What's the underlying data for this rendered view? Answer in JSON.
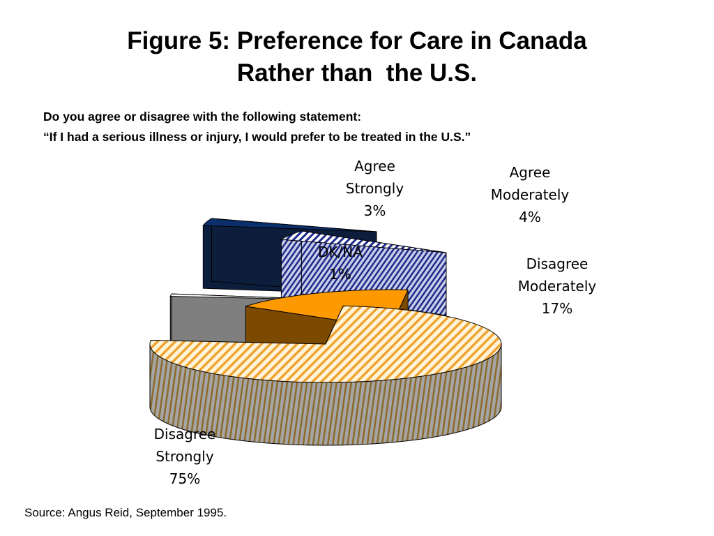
{
  "title": {
    "line1": "Figure 5: Preference for Care in Canada",
    "line2": "Rather than  the U.S."
  },
  "question": {
    "line1": "Do you agree or disagree with the following statement:",
    "line2": "“If I had a serious illness or injury, I would prefer to be treated in the U.S.”"
  },
  "source": "Source: Angus Reid, September 1995.",
  "chart_data": {
    "type": "pie",
    "style": "3d-exploded",
    "title": "Figure 5: Preference for Care in Canada Rather than  the U.S.",
    "slices": [
      {
        "label": "Disagree Strongly",
        "value": 75,
        "display": "75%",
        "color": "#F5A623",
        "pattern": "hatched"
      },
      {
        "label": "DK/NA",
        "value": 1,
        "display": "1%",
        "color": "#FFFFFF",
        "pattern": "solid"
      },
      {
        "label": "Agree Strongly",
        "value": 3,
        "display": "3%",
        "color": "#0A2F6A",
        "pattern": "solid"
      },
      {
        "label": "Agree Moderately",
        "value": 4,
        "display": "4%",
        "color": "#1F2F8F",
        "pattern": "hatched"
      },
      {
        "label": "Disagree Moderately",
        "value": 17,
        "display": "17%",
        "color": "#FF9900",
        "pattern": "solid"
      }
    ],
    "legend": "none"
  },
  "labels": {
    "agree_strongly": {
      "l1": "Agree",
      "l2": "Strongly",
      "l3": "3%"
    },
    "agree_moderately": {
      "l1": "Agree",
      "l2": "Moderately",
      "l3": "4%"
    },
    "dkna": {
      "l1": "DK/NA",
      "l2": "1%"
    },
    "disagree_moderately": {
      "l1": "Disagree",
      "l2": "Moderately",
      "l3": "17%"
    },
    "disagree_strongly": {
      "l1": "Disagree",
      "l2": "Strongly",
      "l3": "75%"
    }
  }
}
